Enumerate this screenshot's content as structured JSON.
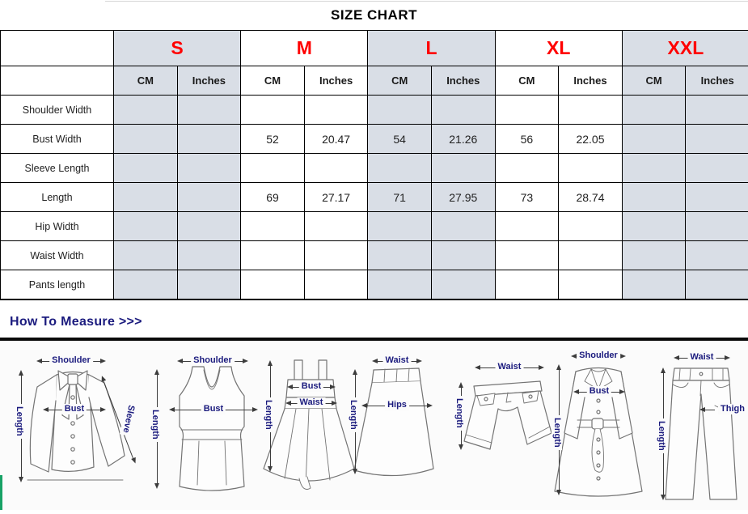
{
  "title": "SIZE CHART",
  "table": {
    "sizes": [
      {
        "label": "S",
        "shaded": true
      },
      {
        "label": "M",
        "shaded": false
      },
      {
        "label": "L",
        "shaded": true
      },
      {
        "label": "XL",
        "shaded": false
      },
      {
        "label": "XXL",
        "shaded": true
      }
    ],
    "unit_headers": [
      "CM",
      "Inches"
    ],
    "rows": [
      {
        "label": "Shoulder Width",
        "values": [
          "",
          "",
          "",
          "",
          "",
          "",
          "",
          "",
          "",
          ""
        ]
      },
      {
        "label": "Bust Width",
        "values": [
          "",
          "",
          "52",
          "20.47",
          "54",
          "21.26",
          "56",
          "22.05",
          "",
          ""
        ]
      },
      {
        "label": "Sleeve Length",
        "values": [
          "",
          "",
          "",
          "",
          "",
          "",
          "",
          "",
          "",
          ""
        ]
      },
      {
        "label": "Length",
        "values": [
          "",
          "",
          "69",
          "27.17",
          "71",
          "27.95",
          "73",
          "28.74",
          "",
          ""
        ]
      },
      {
        "label": "Hip Width",
        "values": [
          "",
          "",
          "",
          "",
          "",
          "",
          "",
          "",
          "",
          ""
        ]
      },
      {
        "label": "Waist Width",
        "values": [
          "",
          "",
          "",
          "",
          "",
          "",
          "",
          "",
          "",
          ""
        ]
      },
      {
        "label": "Pants length",
        "values": [
          "",
          "",
          "",
          "",
          "",
          "",
          "",
          "",
          "",
          ""
        ]
      }
    ]
  },
  "measure_section": {
    "title": "How To Measure >>>"
  },
  "diagrams": [
    {
      "name": "blouse",
      "labels": {
        "top": "Shoulder",
        "mid": "Bust",
        "left": "Length",
        "right": "Sleeve"
      }
    },
    {
      "name": "tank-top",
      "labels": {
        "top": "Shoulder",
        "mid": "Bust",
        "left": "Length"
      }
    },
    {
      "name": "dress",
      "labels": {
        "mid": "Bust",
        "mid2": "Waist",
        "left": "Length"
      }
    },
    {
      "name": "skirt",
      "labels": {
        "top": "Waist",
        "mid": "Hips",
        "left": "Length"
      }
    },
    {
      "name": "shorts",
      "labels": {
        "top": "Waist",
        "left": "Length"
      }
    },
    {
      "name": "coat",
      "labels": {
        "top": "Shoulder",
        "mid": "Bust",
        "left": "Length"
      }
    },
    {
      "name": "pants",
      "labels": {
        "top": "Waist",
        "right": "Thigh",
        "left": "Length"
      }
    }
  ],
  "colors": {
    "accent_red": "#ff0000",
    "column_shade": "#d9dee6",
    "navy": "#1b1b7e",
    "border": "#000000",
    "green_strip": "#18a266"
  }
}
